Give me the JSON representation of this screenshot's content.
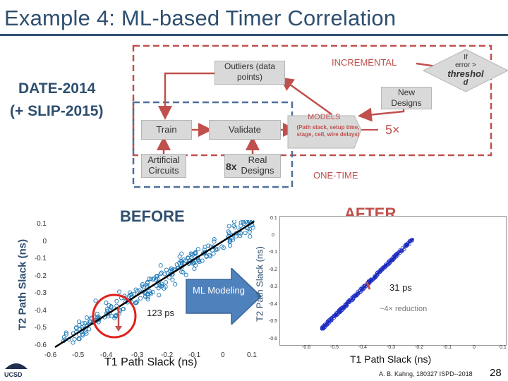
{
  "title": "Example 4: ML-based Timer Correlation",
  "date_label": "DATE-2014",
  "slip_label": "(+ SLIP-2015)",
  "flow": {
    "outliers": "Outliers (data points)",
    "incremental": "INCREMENTAL",
    "error_line1": "If",
    "error_line2": "error >",
    "error_line3": "threshol",
    "error_line4": "d",
    "new_designs": "New Designs",
    "models": "MODELS",
    "models_sub": "(Path slack, setup time, stage, cell, wire delays)",
    "train": "Train",
    "validate": "Validate",
    "five_x": "5×",
    "artificial": "Artificial Circuits",
    "real": "Real Designs",
    "eight_x": "8x",
    "one_time": "ONE-TIME"
  },
  "before": {
    "label": "BEFORE",
    "ylabel": "T2 Path Slack (ns)",
    "xlabel": "T1 Path Slack (ns)",
    "yticks": [
      "0.1",
      "0",
      "-0.1",
      "-0.2",
      "-0.3",
      "-0.4",
      "-0.5",
      "-0.6"
    ],
    "xticks": [
      "-0.6",
      "-0.5",
      "-0.4",
      "-0.3",
      "-0.2",
      "-0.1",
      "0",
      "0.1"
    ],
    "annotation": "123 ps"
  },
  "ml_arrow": "ML Modeling",
  "after": {
    "label": "AFTER",
    "ylabel": "T2 Path Slack (ns)",
    "xlabel": "T1 Path Slack (ns)",
    "yticks": [
      "0.1",
      "0",
      "-0.1",
      "-0.2",
      "-0.3",
      "-0.4",
      "-0.5",
      "-0.6"
    ],
    "xticks": [
      "-0.6",
      "-0.5",
      "-0.4",
      "-0.3",
      "-0.2",
      "-0.1",
      "0",
      "0.1"
    ],
    "annotation": "31 ps",
    "reduction": "~4× reduction"
  },
  "footer": "A. B. Kahng, 180327 ISPD--2018",
  "page_number": "28",
  "logo": "UCSD",
  "colors": {
    "title": "#2f4f6f",
    "red": "#c0504d",
    "blue_dash": "#4f6f9a",
    "scatter": "#1f7ab8",
    "after_scatter": "#2233cc"
  }
}
